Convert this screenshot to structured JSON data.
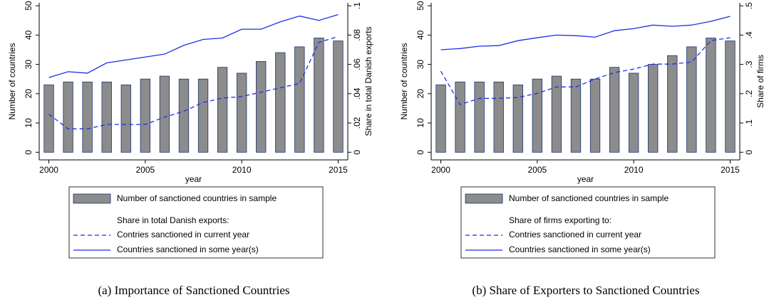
{
  "chart_data": [
    {
      "type": "bar-line",
      "caption": "(a) Importance of Sanctioned Countries",
      "x": [
        2000,
        2001,
        2002,
        2003,
        2004,
        2005,
        2006,
        2007,
        2008,
        2009,
        2010,
        2011,
        2012,
        2013,
        2014,
        2015
      ],
      "xlim": [
        1999.5,
        2015.5
      ],
      "xticks": [
        2000,
        2005,
        2010,
        2015
      ],
      "ylim": [
        -2.6,
        51
      ],
      "yticks": [
        0,
        10,
        20,
        30,
        40,
        50
      ],
      "y2lim": [
        -0.0052,
        0.102
      ],
      "y2ticks": [
        0,
        {
          "value": 0.02,
          "label": ".02"
        },
        {
          "value": 0.04,
          "label": ".04"
        },
        {
          "value": 0.06,
          "label": ".06"
        },
        {
          "value": 0.08,
          "label": ".08"
        },
        {
          "value": 0.1,
          "label": ".1"
        }
      ],
      "xlabel": "year",
      "ylabel": "Number of countries",
      "y2label": "Share in total Danish exports",
      "legend_title": "Share in total Danish exports:",
      "series": [
        {
          "name": "Number of sanctioned countries in sample",
          "kind": "bar",
          "color": "#8c8c8c",
          "edge": "#1a3570",
          "values": [
            23,
            24,
            24,
            24,
            23,
            25,
            26,
            25,
            25,
            29,
            27,
            31,
            34,
            36,
            39,
            38
          ]
        },
        {
          "name": "Contries sanctioned in current year",
          "kind": "line",
          "style": "dashed",
          "color": "#1f2ee8",
          "axis": "y2",
          "values": [
            0.026,
            0.016,
            0.016,
            0.019,
            0.019,
            0.019,
            0.024,
            0.028,
            0.034,
            0.037,
            0.038,
            0.041,
            0.044,
            0.047,
            0.075,
            0.079
          ]
        },
        {
          "name": "Countries sanctioned in some year(s)",
          "kind": "line",
          "style": "solid",
          "color": "#1f2ee8",
          "axis": "y2",
          "values": [
            0.051,
            0.055,
            0.054,
            0.061,
            0.063,
            0.065,
            0.067,
            0.073,
            0.077,
            0.078,
            0.084,
            0.084,
            0.089,
            0.093,
            0.09,
            0.094
          ]
        }
      ]
    },
    {
      "type": "bar-line",
      "caption": "(b) Share of Exporters to Sanctioned Countries",
      "x": [
        2000,
        2001,
        2002,
        2003,
        2004,
        2005,
        2006,
        2007,
        2008,
        2009,
        2010,
        2011,
        2012,
        2013,
        2014,
        2015
      ],
      "xlim": [
        1999.5,
        2015.5
      ],
      "xticks": [
        2000,
        2005,
        2010,
        2015
      ],
      "ylim": [
        -2.6,
        51
      ],
      "yticks": [
        0,
        10,
        20,
        30,
        40,
        50
      ],
      "y2lim": [
        -0.026,
        0.51
      ],
      "y2ticks": [
        0,
        {
          "value": 0.1,
          "label": ".1"
        },
        {
          "value": 0.2,
          "label": ".2"
        },
        {
          "value": 0.3,
          "label": ".3"
        },
        {
          "value": 0.4,
          "label": ".4"
        },
        {
          "value": 0.5,
          "label": ".5"
        }
      ],
      "xlabel": "year",
      "ylabel": "Number of countries",
      "y2label": "Share of firms",
      "legend_title": "Share of firms exporting to:",
      "series": [
        {
          "name": "Number of sanctioned countries in sample",
          "kind": "bar",
          "color": "#8c8c8c",
          "edge": "#1a3570",
          "values": [
            23,
            24,
            24,
            24,
            23,
            25,
            26,
            25,
            25,
            29,
            27,
            30,
            33,
            36,
            39,
            38
          ]
        },
        {
          "name": "Contries sanctioned in current year",
          "kind": "line",
          "style": "dashed",
          "color": "#1f2ee8",
          "axis": "y2",
          "values": [
            0.277,
            0.163,
            0.184,
            0.184,
            0.187,
            0.201,
            0.223,
            0.223,
            0.25,
            0.272,
            0.284,
            0.301,
            0.301,
            0.308,
            0.381,
            0.391
          ]
        },
        {
          "name": "Countries sanctioned in some year(s)",
          "kind": "line",
          "style": "solid",
          "color": "#1f2ee8",
          "axis": "y2",
          "values": [
            0.35,
            0.354,
            0.362,
            0.364,
            0.381,
            0.391,
            0.4,
            0.398,
            0.393,
            0.415,
            0.422,
            0.434,
            0.43,
            0.434,
            0.447,
            0.464
          ]
        }
      ]
    }
  ]
}
